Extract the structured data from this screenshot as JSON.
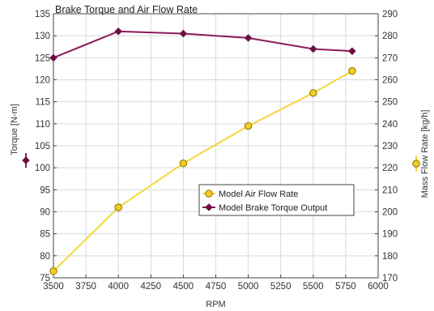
{
  "chart_data": {
    "type": "line",
    "title": "Brake Torque and Air Flow Rate",
    "xlabel": "RPM",
    "ylabel_left": "Torque [N-m]",
    "ylabel_right": "Mass Flow Rate [kg/h]",
    "xlim": [
      3500,
      6000
    ],
    "ylim_left": [
      75,
      135
    ],
    "ylim_right": [
      170,
      290
    ],
    "x_ticks": [
      3500,
      3750,
      4000,
      4250,
      4500,
      4750,
      5000,
      5250,
      5500,
      5750,
      6000
    ],
    "y_left_ticks": [
      75,
      80,
      85,
      90,
      95,
      100,
      105,
      110,
      115,
      120,
      125,
      130,
      135
    ],
    "y_right_ticks": [
      170,
      180,
      190,
      200,
      210,
      220,
      230,
      240,
      250,
      260,
      270,
      280,
      290
    ],
    "grid": true,
    "legend_position": "center-right",
    "series": [
      {
        "name": "Model Air Flow Rate",
        "axis": "right",
        "color": "#f2d83b",
        "marker": "circle",
        "marker_fill": "#f2cf20",
        "marker_stroke": "#8a6d00",
        "x": [
          3500,
          4000,
          4500,
          5000,
          5500,
          5800
        ],
        "y": [
          173,
          202,
          222,
          239,
          254,
          264
        ]
      },
      {
        "name": "Model Brake Torque Output",
        "axis": "left",
        "color": "#8b1a5a",
        "marker": "diamond",
        "marker_fill": "#6b0f45",
        "x": [
          3500,
          4000,
          4500,
          5000,
          5500,
          5800
        ],
        "y": [
          125,
          131,
          130.5,
          129.5,
          127,
          126.5
        ]
      }
    ]
  }
}
